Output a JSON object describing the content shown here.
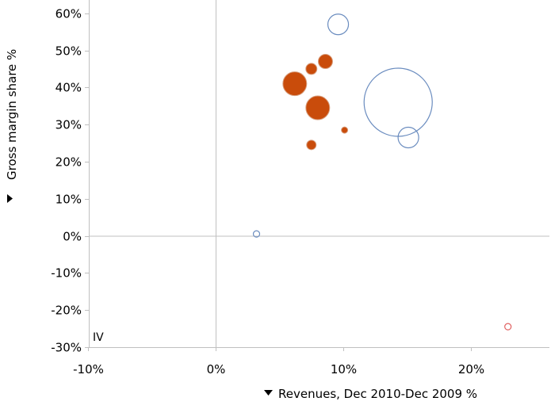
{
  "chart_data": {
    "type": "scatter",
    "subtype": "bubble",
    "title": "",
    "xlabel": "Revenues, Dec 2010-Dec 2009 %",
    "ylabel": "Gross margin share %",
    "axis_menu_icon": "triangle-icon",
    "xlim": [
      -10,
      26
    ],
    "ylim": [
      -30,
      65
    ],
    "x_ticks": [
      -10,
      0,
      10,
      20
    ],
    "x_tick_labels": [
      "-10%",
      "0%",
      "10%",
      "20%"
    ],
    "y_ticks": [
      -30,
      -20,
      -10,
      0,
      10,
      20,
      30,
      40,
      50,
      60
    ],
    "y_tick_labels": [
      "-30%",
      "-20%",
      "-10%",
      "0%",
      "10%",
      "20%",
      "30%",
      "40%",
      "50%",
      "60%"
    ],
    "grid": false,
    "reference_lines": {
      "x": 0,
      "y": 0
    },
    "quadrant_label": "IV",
    "colors": {
      "filled": "#c94c0b",
      "hollow_blue": "#6a8cbf",
      "hollow_red": "#e06060",
      "reference_line": "#c0c0c0",
      "frame": "#c0c0c0"
    },
    "points": [
      {
        "x": 9.6,
        "y": 57,
        "size": 13,
        "style": "hollow_blue"
      },
      {
        "x": 14.3,
        "y": 36,
        "size": 43,
        "style": "hollow_blue"
      },
      {
        "x": 15.1,
        "y": 26.5,
        "size": 13,
        "style": "hollow_blue"
      },
      {
        "x": 3.2,
        "y": 0.5,
        "size": 4,
        "style": "hollow_blue"
      },
      {
        "x": 22.9,
        "y": -24.5,
        "size": 4,
        "style": "hollow_red"
      },
      {
        "x": 6.2,
        "y": 41,
        "size": 15,
        "style": "filled"
      },
      {
        "x": 7.5,
        "y": 45,
        "size": 7,
        "style": "filled"
      },
      {
        "x": 8.6,
        "y": 47,
        "size": 9,
        "style": "filled"
      },
      {
        "x": 8.0,
        "y": 34.5,
        "size": 15,
        "style": "filled"
      },
      {
        "x": 10.1,
        "y": 28.5,
        "size": 4,
        "style": "filled"
      },
      {
        "x": 7.5,
        "y": 24.5,
        "size": 6,
        "style": "filled"
      }
    ]
  }
}
